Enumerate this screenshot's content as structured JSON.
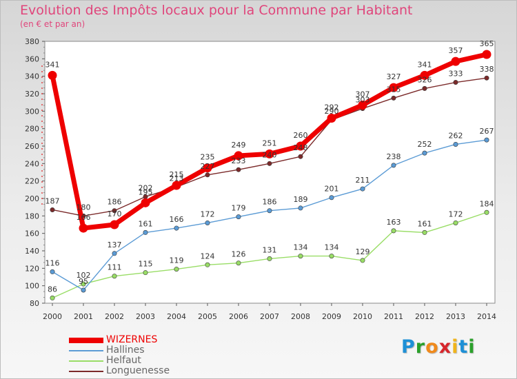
{
  "title": "Evolution des Impôts locaux pour la Commune par Habitant",
  "subtitle": "(en € et par an)",
  "logo": {
    "text": "Proxiti",
    "letters": [
      "P",
      "r",
      "o",
      "x",
      "i",
      "t",
      "i"
    ],
    "colors": [
      "#1e90d6",
      "#2aa02a",
      "#f08a1c",
      "#d7262c",
      "#f0b41c",
      "#1e90d6",
      "#2aa02a"
    ]
  },
  "chart_data": {
    "type": "line",
    "title": "Evolution des Impôts locaux pour la Commune par Habitant",
    "subtitle": "(en € et par an)",
    "xlabel": "",
    "ylabel": "",
    "x": [
      "2000",
      "2001",
      "2002",
      "2003",
      "2004",
      "2005",
      "2006",
      "2007",
      "2008",
      "2009",
      "2010",
      "2011",
      "2012",
      "2013",
      "2014"
    ],
    "ylim": [
      80,
      380
    ],
    "yticks": [
      "80",
      "100",
      "120",
      "140",
      "160",
      "180",
      "200",
      "220",
      "240",
      "260",
      "280",
      "300",
      "320",
      "340",
      "360",
      "380"
    ],
    "grid": false,
    "legend_position": "bottom-left",
    "series": [
      {
        "name": "WIZERNES",
        "color": "#ee0000",
        "style": "thick",
        "values": [
          341,
          166,
          170,
          195,
          215,
          235,
          249,
          251,
          260,
          292,
          307,
          327,
          341,
          357,
          365
        ],
        "labels": [
          "341",
          "166",
          "170",
          "195",
          "215",
          "235",
          "249",
          "251",
          "260",
          "292",
          "307",
          "327",
          "341",
          "357",
          "365"
        ]
      },
      {
        "name": "Hallines",
        "color": "#5b9bd5",
        "style": "thin",
        "values": [
          116,
          95,
          137,
          161,
          166,
          172,
          179,
          186,
          189,
          201,
          211,
          238,
          252,
          262,
          267
        ],
        "labels": [
          "116",
          "95",
          "137",
          "161",
          "166",
          "172",
          "179",
          "186",
          "189",
          "201",
          "211",
          "238",
          "252",
          "262",
          "267"
        ]
      },
      {
        "name": "Helfaut",
        "color": "#99dd66",
        "style": "thin",
        "values": [
          86,
          102,
          111,
          115,
          119,
          124,
          126,
          131,
          134,
          134,
          129,
          163,
          161,
          172,
          184
        ],
        "labels": [
          "86",
          "102",
          "111",
          "115",
          "119",
          "124",
          "126",
          "131",
          "134",
          "134",
          "129",
          "163",
          "161",
          "172",
          "184"
        ]
      },
      {
        "name": "Longuenesse",
        "color": "#7b2a2a",
        "style": "thin",
        "values": [
          187,
          180,
          186,
          202,
          213,
          227,
          233,
          240,
          248,
          290,
          303,
          315,
          326,
          333,
          338
        ],
        "labels": [
          "187",
          "180",
          "186",
          "202",
          "213",
          "227",
          "233",
          "240",
          "248",
          "290",
          "303",
          "315",
          "326",
          "333",
          "338"
        ]
      }
    ]
  }
}
